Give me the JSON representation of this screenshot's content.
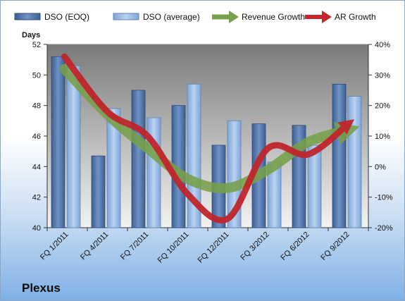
{
  "chart_data": {
    "type": "bar",
    "categories": [
      "FQ 1/2011",
      "FQ 4/2011",
      "FQ 7/2011",
      "FQ 10/2011",
      "FQ 12/2011",
      "FQ 3/2012",
      "FQ 6/2012",
      "FQ 9/2012"
    ],
    "ylabel": "Days",
    "ylim": [
      40,
      52
    ],
    "yticks": [
      "40",
      "42",
      "44",
      "46",
      "48",
      "50",
      "52"
    ],
    "y2lim": [
      -20,
      40
    ],
    "y2ticks": [
      "-20%",
      "-10%",
      "0%",
      "10%",
      "20%",
      "30%",
      "40%"
    ],
    "grid": false,
    "legend_position": "top",
    "series": [
      {
        "name": "DSO (EOQ)",
        "kind": "bar",
        "axis": "left",
        "color": "#4a6fa5",
        "values": [
          51.2,
          44.7,
          49.0,
          48.0,
          45.4,
          46.8,
          46.7,
          49.4
        ]
      },
      {
        "name": "DSO (average)",
        "kind": "bar",
        "axis": "left",
        "color": "#8fb4e3",
        "values": [
          50.6,
          47.8,
          47.2,
          49.4,
          47.0,
          44.3,
          45.4,
          48.6
        ]
      },
      {
        "name": "Revenue Growth",
        "kind": "smooth-arrow",
        "axis": "right",
        "color": "#77a04a",
        "values": [
          32,
          17,
          6,
          -4,
          -7,
          -1,
          8,
          12
        ]
      },
      {
        "name": "AR Growth",
        "kind": "smooth-arrow",
        "axis": "right",
        "color": "#c0262c",
        "values": [
          36,
          18,
          10,
          -9,
          -17,
          6,
          4,
          14
        ]
      }
    ]
  },
  "footer": {
    "company": "Plexus"
  }
}
